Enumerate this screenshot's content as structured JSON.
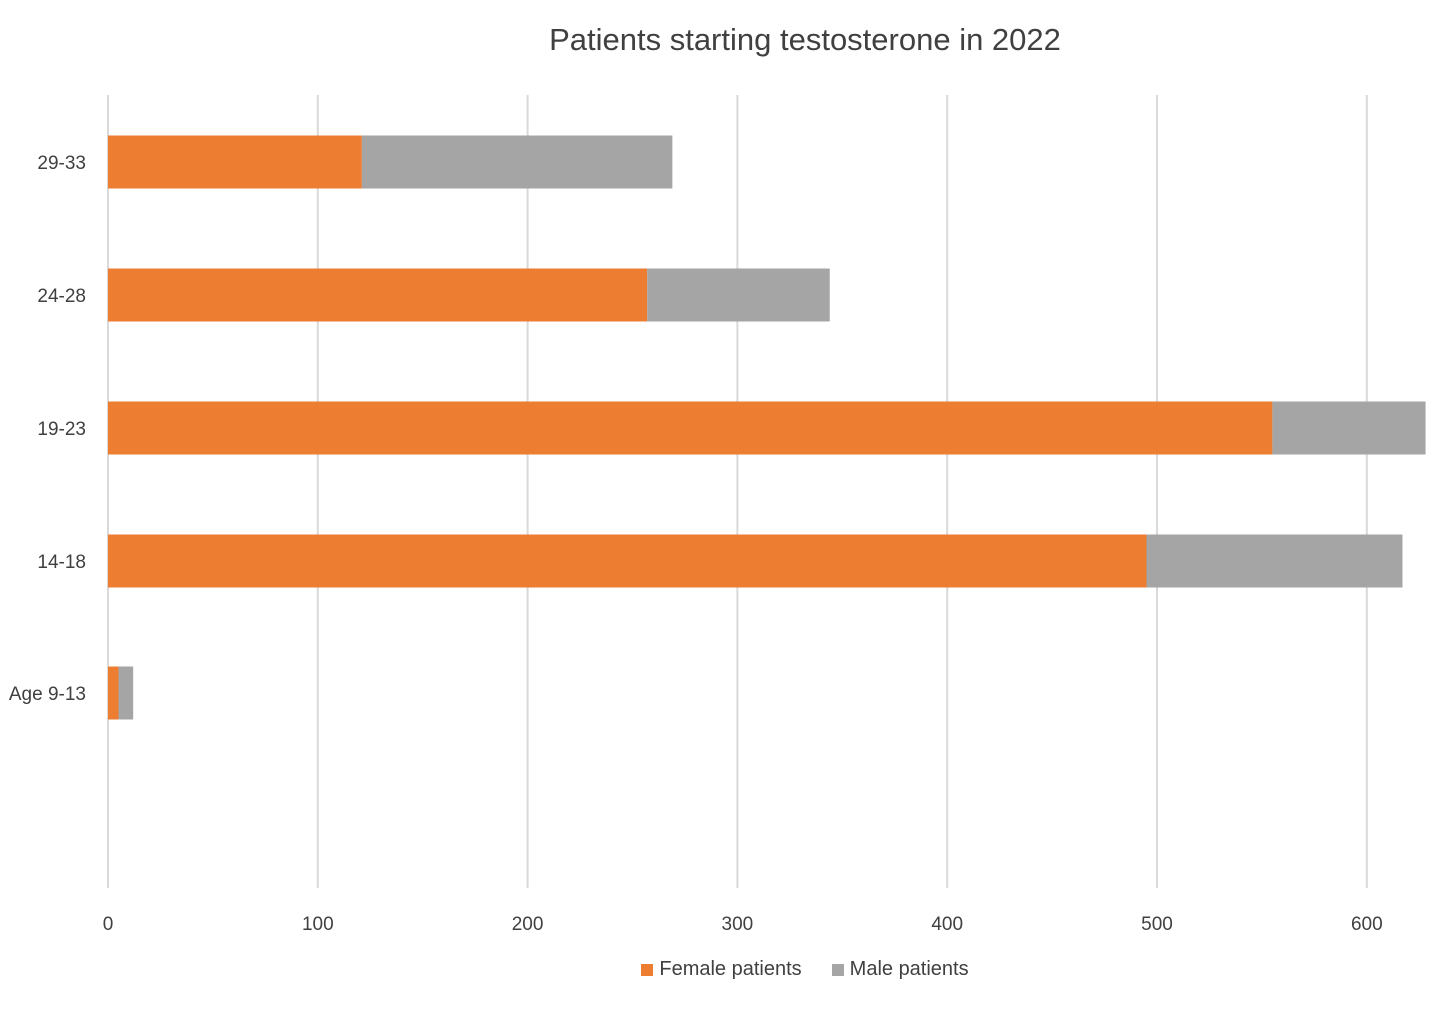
{
  "chart_data": {
    "type": "bar",
    "orientation": "horizontal",
    "stacked": true,
    "title": "Patients starting testosterone in 2022",
    "xlabel": "",
    "ylabel": "",
    "categories": [
      "Age 9-13",
      "14-18",
      "19-23",
      "24-28",
      "29-33"
    ],
    "series": [
      {
        "name": "Female patients",
        "color": "#ED7D31",
        "values": [
          5,
          495,
          555,
          257,
          121
        ]
      },
      {
        "name": "Male patients",
        "color": "#A5A5A5",
        "values": [
          7,
          122,
          73,
          87,
          148
        ]
      }
    ],
    "xlim": [
      0,
      630
    ],
    "xticks": [
      "0",
      "100",
      "200",
      "300",
      "400",
      "500",
      "600"
    ],
    "grid": true,
    "legend_position": "bottom"
  }
}
